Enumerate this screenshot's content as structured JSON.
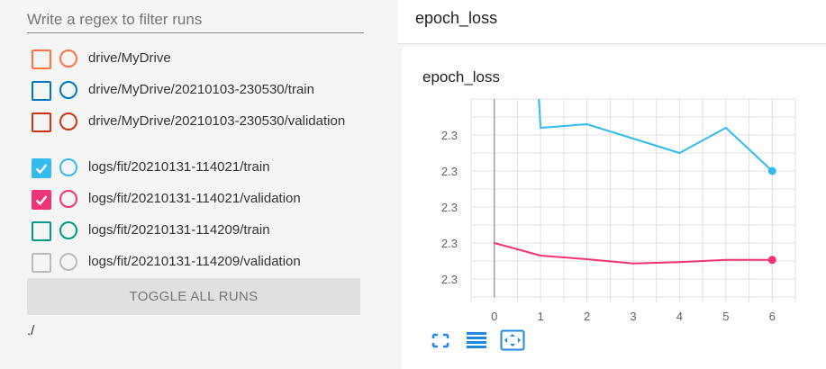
{
  "filter": {
    "placeholder": "Write a regex to filter runs"
  },
  "runs": [
    {
      "label": "drive/MyDrive",
      "color": "#ff7043",
      "checked": false
    },
    {
      "label": "drive/MyDrive/20210103-230530/train",
      "color": "#0077bb",
      "checked": false
    },
    {
      "label": "drive/MyDrive/20210103-230530/validation",
      "color": "#cc3311",
      "checked": false
    },
    {
      "label": "logs/fit/20210131-114021/train",
      "color": "#33bbee",
      "checked": true
    },
    {
      "label": "logs/fit/20210131-114021/validation",
      "color": "#ee3377",
      "checked": true
    },
    {
      "label": "logs/fit/20210131-114209/train",
      "color": "#009988",
      "checked": false
    },
    {
      "label": "logs/fit/20210131-114209/validation",
      "color": "#bbbbbb",
      "checked": false
    }
  ],
  "toggle_all_label": "TOGGLE ALL RUNS",
  "logdir": "./",
  "group": {
    "title": "epoch_loss"
  },
  "card": {
    "title": "epoch_loss"
  },
  "chart_data": {
    "type": "line",
    "title": "epoch_loss",
    "x": [
      0,
      1,
      2,
      3,
      4,
      5,
      6
    ],
    "xticks": [
      "0",
      "1",
      "2",
      "3",
      "4",
      "5",
      "6"
    ],
    "ytick_labels": [
      "2.3",
      "2.3",
      "2.3",
      "2.3",
      "2.3"
    ],
    "ytick_values": [
      2.304,
      2.303,
      2.302,
      2.301,
      2.3
    ],
    "ylim": [
      2.2995,
      2.305
    ],
    "xlim": [
      -0.5,
      6.5
    ],
    "grid": true,
    "series": [
      {
        "name": "logs/fit/20210131-114021/train",
        "color": "#33bbee",
        "x": [
          0.9,
          1,
          2,
          3,
          4,
          5,
          6
        ],
        "values": [
          2.3063,
          2.3042,
          2.3043,
          2.3039,
          2.3035,
          2.3042,
          2.303
        ]
      },
      {
        "name": "logs/fit/20210131-114021/validation",
        "color": "#ee3377",
        "x": [
          0,
          1,
          2,
          3,
          4,
          5,
          6
        ],
        "values": [
          2.301,
          2.30065,
          2.30055,
          2.30043,
          2.30047,
          2.30053,
          2.30053
        ]
      }
    ]
  },
  "toolbar": [
    {
      "name": "fullscreen-icon"
    },
    {
      "name": "toggle-y-log-icon"
    },
    {
      "name": "fit-domain-icon"
    }
  ]
}
